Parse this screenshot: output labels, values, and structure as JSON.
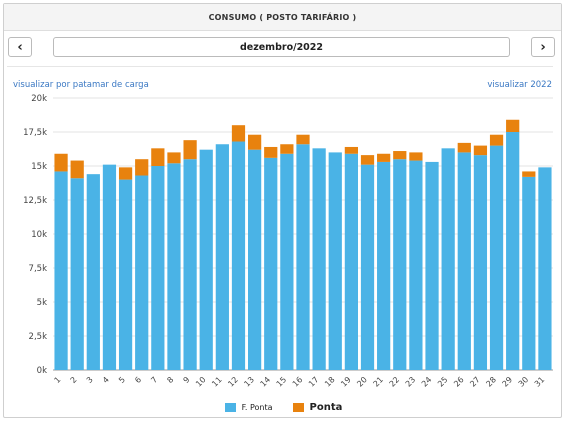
{
  "header": {
    "title": "CONSUMO ( POSTO TARIFÁRIO )"
  },
  "nav": {
    "prev_icon": "chevron-left-icon",
    "next_icon": "chevron-right-icon",
    "prev_label": "‹",
    "next_label": "›"
  },
  "period": {
    "label": "dezembro/2022"
  },
  "links": {
    "by_load": "visualizar por patamar de carga",
    "year": "visualizar 2022"
  },
  "legend": {
    "fora_ponta": "F. Ponta",
    "ponta": "Ponta"
  },
  "colors": {
    "fora_ponta": "#4ab3e6",
    "ponta": "#e8820e"
  },
  "chart_data": {
    "type": "bar",
    "stacked": true,
    "categories": [
      "1",
      "2",
      "3",
      "4",
      "5",
      "6",
      "7",
      "8",
      "9",
      "10",
      "11",
      "12",
      "13",
      "14",
      "15",
      "16",
      "17",
      "18",
      "19",
      "20",
      "21",
      "22",
      "23",
      "24",
      "25",
      "26",
      "27",
      "28",
      "29",
      "30",
      "31"
    ],
    "series": [
      {
        "name": "F. Ponta",
        "values": [
          14600,
          14100,
          14400,
          15100,
          14000,
          14300,
          15000,
          15200,
          15500,
          16200,
          16600,
          16800,
          16200,
          15600,
          15900,
          16600,
          16300,
          16000,
          15900,
          15100,
          15300,
          15500,
          15400,
          15300,
          16300,
          16000,
          15800,
          16500,
          17500,
          14200,
          14900
        ]
      },
      {
        "name": "Ponta",
        "values": [
          1300,
          1300,
          0,
          0,
          900,
          1200,
          1300,
          800,
          1400,
          0,
          0,
          1200,
          1100,
          800,
          700,
          700,
          0,
          0,
          500,
          700,
          600,
          600,
          600,
          0,
          0,
          700,
          700,
          800,
          900,
          400,
          0
        ]
      }
    ],
    "ylim": [
      0,
      20000
    ],
    "yticks": [
      "0k",
      "2,5k",
      "5k",
      "7,5k",
      "10k",
      "12,5k",
      "15k",
      "17,5k",
      "20k"
    ],
    "grid": true,
    "legend_position": "bottom"
  }
}
